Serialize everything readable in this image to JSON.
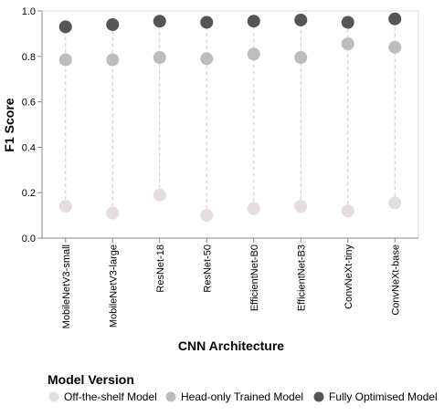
{
  "chart_data": {
    "type": "scatter",
    "categories": [
      "MobileNetV3-small",
      "MobileNetV3-large",
      "ResNet-18",
      "ResNet-50",
      "EfficientNet-B0",
      "EfficientNet-B3",
      "ConvNeXt-tiny",
      "ConvNeXt-base"
    ],
    "series": [
      {
        "name": "Off-the-shelf Model",
        "color": "#e6dede",
        "values": [
          0.14,
          0.11,
          0.19,
          0.1,
          0.13,
          0.14,
          0.12,
          0.155
        ]
      },
      {
        "name": "Head-only Trained Model",
        "color": "#bdbdbd",
        "values": [
          0.785,
          0.785,
          0.795,
          0.79,
          0.81,
          0.795,
          0.855,
          0.84
        ]
      },
      {
        "name": "Fully Optimised Model",
        "color": "#555555",
        "values": [
          0.93,
          0.94,
          0.955,
          0.95,
          0.955,
          0.96,
          0.95,
          0.965
        ]
      }
    ],
    "xlabel": "CNN Architecture",
    "ylabel": "F1 Score",
    "ylim": [
      0,
      1
    ],
    "yticks": [
      "0.0",
      "0.2",
      "0.4",
      "0.6",
      "0.8",
      "1.0"
    ],
    "grid": false,
    "guide_lines": "dashed vertical per category",
    "legend": {
      "title": "Model Version",
      "placement": "bottom"
    }
  }
}
